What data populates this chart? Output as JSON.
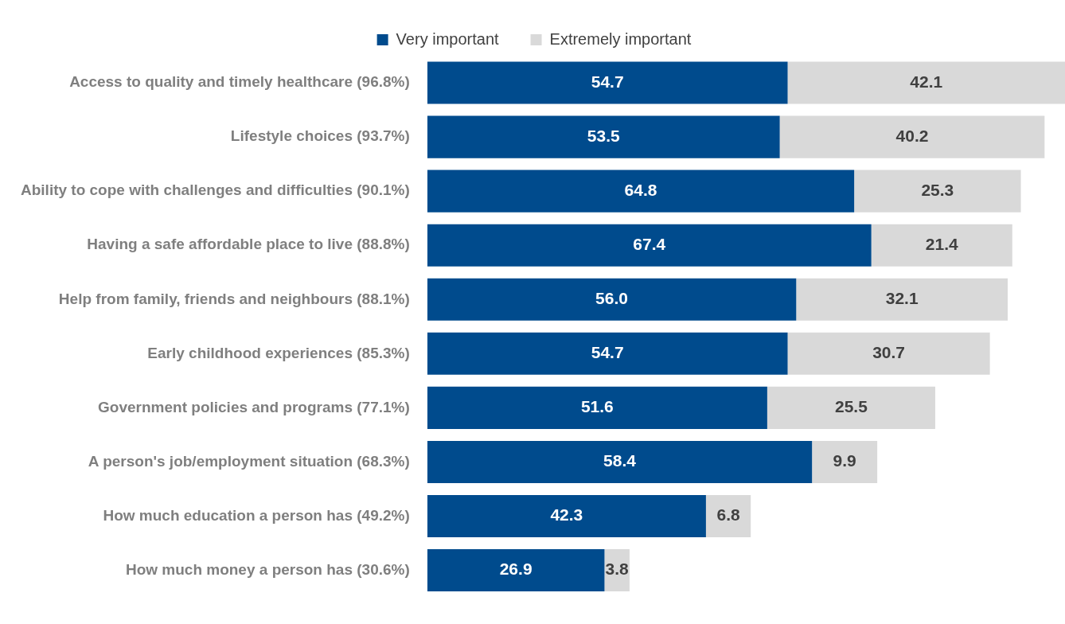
{
  "chart_data": {
    "type": "bar",
    "orientation": "horizontal",
    "stacked": true,
    "legend": "top",
    "grid": false,
    "tick_labels": "y",
    "categories": [
      "Access to quality and timely healthcare (96.8%)",
      "Lifestyle choices (93.7%)",
      "Ability to cope with challenges and difficulties (90.1%)",
      "Having a safe affordable place to live (88.8%)",
      "Help from family, friends and neighbours (88.1%)",
      "Early childhood experiences (85.3%)",
      "Government policies and programs (77.1%)",
      "A person's job/employment situation (68.3%)",
      "How much education a person has (49.2%)",
      "How much money a person has (30.6%)"
    ],
    "series": [
      {
        "name": "Very important",
        "color": "#004b8d",
        "values": [
          54.7,
          53.5,
          64.8,
          67.4,
          56.0,
          54.7,
          51.6,
          58.4,
          42.3,
          26.9
        ],
        "value_labels": [
          "54.7",
          "53.5",
          "64.8",
          "67.4",
          "56.0",
          "54.7",
          "51.6",
          "58.4",
          "42.3",
          "26.9"
        ]
      },
      {
        "name": "Extremely important",
        "color": "#d9d9d9",
        "values": [
          42.1,
          40.2,
          25.3,
          21.4,
          32.1,
          30.7,
          25.5,
          9.9,
          6.8,
          3.8
        ],
        "value_labels": [
          "42.1",
          "40.2",
          "25.3",
          "21.4",
          "32.1",
          "30.7",
          "25.5",
          "9.9",
          "6.8",
          "3.8"
        ]
      }
    ]
  }
}
